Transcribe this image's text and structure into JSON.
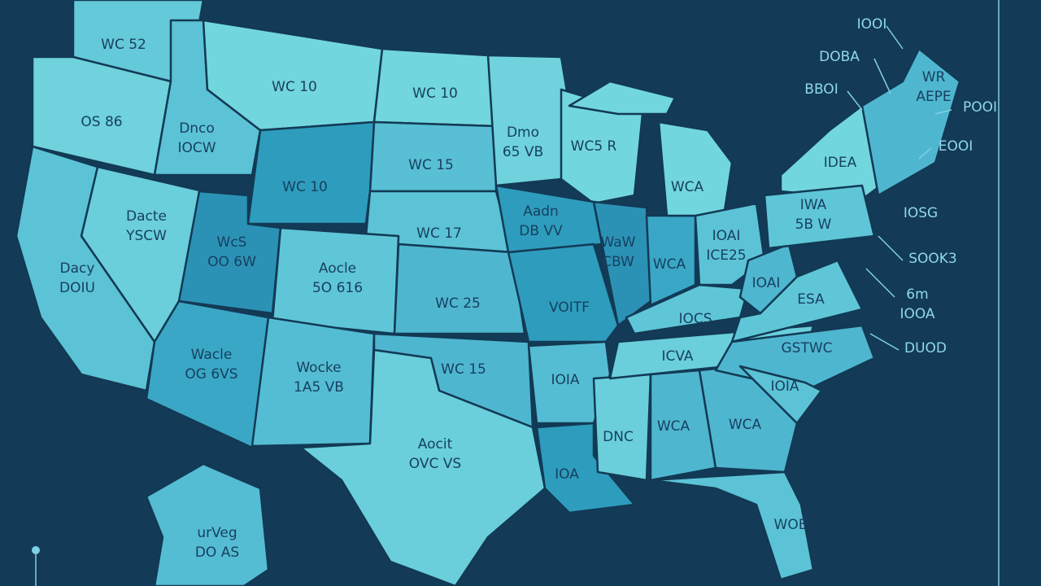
{
  "regions": [
    {
      "lines": [
        "WC 52"
      ]
    },
    {
      "lines": [
        "OS 86"
      ]
    },
    {
      "lines": [
        "Dnco",
        "IOCW"
      ]
    },
    {
      "lines": [
        "WC 10"
      ]
    },
    {
      "lines": [
        "WC 10"
      ]
    },
    {
      "lines": [
        "WC 10"
      ]
    },
    {
      "lines": [
        "WC 15"
      ]
    },
    {
      "lines": [
        "Dacte",
        "YSCW"
      ]
    },
    {
      "lines": [
        "Dacy",
        "DOIU"
      ]
    },
    {
      "lines": [
        "WcS",
        "OO 6W"
      ]
    },
    {
      "lines": [
        "Aocle",
        "5O 616"
      ]
    },
    {
      "lines": [
        "WC 17"
      ]
    },
    {
      "lines": [
        "WC 25"
      ]
    },
    {
      "lines": [
        "Wacle",
        "OG 6VS"
      ]
    },
    {
      "lines": [
        "Wocke",
        "1A5 VB"
      ]
    },
    {
      "lines": [
        "WC 15"
      ]
    },
    {
      "lines": [
        "Aocit",
        "OVC VS"
      ]
    },
    {
      "lines": [
        "Dmo",
        "65 VB"
      ]
    },
    {
      "lines": [
        "WC5 R"
      ]
    },
    {
      "lines": [
        "Aadn",
        "DB VV"
      ]
    },
    {
      "lines": [
        "WaW",
        "CBW"
      ]
    },
    {
      "lines": [
        "WCA"
      ]
    },
    {
      "lines": [
        "VOITF"
      ]
    },
    {
      "lines": [
        "WCA"
      ]
    },
    {
      "lines": [
        "IOIA"
      ]
    },
    {
      "lines": [
        "IOA"
      ]
    },
    {
      "lines": [
        "DNC"
      ]
    },
    {
      "lines": [
        "WCA"
      ]
    },
    {
      "lines": [
        "WCA"
      ]
    },
    {
      "lines": [
        "WOE"
      ]
    },
    {
      "lines": [
        "IOCS"
      ]
    },
    {
      "lines": [
        "ICVA"
      ]
    },
    {
      "lines": [
        "IOAI",
        "ICE25"
      ]
    },
    {
      "lines": [
        "IOAI"
      ]
    },
    {
      "lines": [
        "ESA"
      ]
    },
    {
      "lines": [
        "GSTWC"
      ]
    },
    {
      "lines": [
        "IOIA"
      ]
    },
    {
      "lines": [
        "IDEA"
      ]
    },
    {
      "lines": [
        "IWA",
        "5B W"
      ]
    },
    {
      "lines": [
        "WR",
        "AEPE"
      ]
    },
    {
      "lines": [
        "urVeg",
        "DO AS"
      ]
    }
  ],
  "callouts": [
    {
      "lines": [
        "IOOI"
      ]
    },
    {
      "lines": [
        "DOBA"
      ]
    },
    {
      "lines": [
        "BBOI"
      ]
    },
    {
      "lines": [
        "POOI"
      ]
    },
    {
      "lines": [
        "EOOI"
      ]
    },
    {
      "lines": [
        "IOSG"
      ]
    },
    {
      "lines": [
        "SOOK3"
      ]
    },
    {
      "lines": [
        "6m",
        "IOOA"
      ]
    },
    {
      "lines": [
        "DUOD"
      ]
    }
  ]
}
